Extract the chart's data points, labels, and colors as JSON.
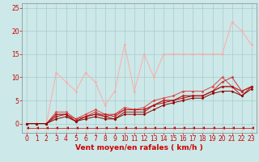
{
  "background_color": "#cce8e8",
  "grid_color": "#aacccc",
  "xlabel": "Vent moyen/en rafales ( km/h )",
  "xlabel_color": "#cc0000",
  "xlabel_fontsize": 6.5,
  "tick_color": "#cc0000",
  "tick_fontsize": 5.5,
  "xlim": [
    -0.5,
    23.5
  ],
  "ylim": [
    -2,
    26
  ],
  "yticks": [
    0,
    5,
    10,
    15,
    20,
    25
  ],
  "xticks": [
    0,
    1,
    2,
    3,
    4,
    5,
    6,
    7,
    8,
    9,
    10,
    11,
    12,
    13,
    14,
    15,
    16,
    17,
    18,
    19,
    20,
    21,
    22,
    23
  ],
  "series": [
    {
      "x": [
        0,
        1,
        2,
        3,
        4,
        5,
        6,
        7,
        8,
        9,
        10,
        11,
        12,
        13,
        14,
        15,
        16,
        17,
        18,
        19,
        20,
        21,
        22,
        23
      ],
      "y": [
        0,
        0,
        0,
        11,
        9,
        7,
        11,
        9,
        4,
        7,
        17,
        7,
        15,
        10,
        15,
        15,
        15,
        15,
        15,
        15,
        15,
        22,
        20,
        17
      ],
      "color": "#ffaaaa",
      "linewidth": 0.7,
      "marker": "D",
      "markersize": 1.5
    },
    {
      "x": [
        0,
        1,
        2,
        3,
        4,
        5,
        6,
        7,
        8,
        9,
        10,
        11,
        12,
        13,
        14,
        15,
        16,
        17,
        18,
        19,
        20,
        21,
        22,
        23
      ],
      "y": [
        0,
        0,
        0,
        2.5,
        2.5,
        1,
        2,
        3,
        2,
        2,
        3.5,
        3,
        3.5,
        5,
        5.5,
        6,
        7,
        7,
        7,
        8,
        10,
        8,
        7,
        8
      ],
      "color": "#dd4444",
      "linewidth": 0.7,
      "marker": "D",
      "markersize": 1.5
    },
    {
      "x": [
        0,
        1,
        2,
        3,
        4,
        5,
        6,
        7,
        8,
        9,
        10,
        11,
        12,
        13,
        14,
        15,
        16,
        17,
        18,
        19,
        20,
        21,
        22,
        23
      ],
      "y": [
        0,
        0,
        0,
        2,
        2,
        1,
        1.5,
        2.5,
        1.5,
        2,
        3,
        3,
        3,
        4,
        5,
        5,
        6,
        6,
        6,
        7,
        9,
        10,
        7,
        8
      ],
      "color": "#cc3333",
      "linewidth": 0.7,
      "marker": "D",
      "markersize": 1.5
    },
    {
      "x": [
        0,
        1,
        2,
        3,
        4,
        5,
        6,
        7,
        8,
        9,
        10,
        11,
        12,
        13,
        14,
        15,
        16,
        17,
        18,
        19,
        20,
        21,
        22,
        23
      ],
      "y": [
        0,
        0,
        0,
        2,
        2,
        0.5,
        1.5,
        2,
        2,
        1.5,
        3,
        3,
        3,
        4,
        5,
        5,
        6,
        6,
        6,
        7,
        8,
        8,
        7,
        8
      ],
      "color": "#bb2222",
      "linewidth": 0.7,
      "marker": "D",
      "markersize": 1.5
    },
    {
      "x": [
        0,
        1,
        2,
        3,
        4,
        5,
        6,
        7,
        8,
        9,
        10,
        11,
        12,
        13,
        14,
        15,
        16,
        17,
        18,
        19,
        20,
        21,
        22,
        23
      ],
      "y": [
        0,
        0,
        0,
        1.5,
        2,
        0.5,
        1.5,
        2,
        1.5,
        1,
        2.5,
        2.5,
        2.5,
        4,
        4.5,
        5,
        5.5,
        6,
        6,
        7,
        8,
        8,
        6,
        8
      ],
      "color": "#aa1111",
      "linewidth": 0.7,
      "marker": "D",
      "markersize": 1.5
    },
    {
      "x": [
        0,
        1,
        2,
        3,
        4,
        5,
        6,
        7,
        8,
        9,
        10,
        11,
        12,
        13,
        14,
        15,
        16,
        17,
        18,
        19,
        20,
        21,
        22,
        23
      ],
      "y": [
        0,
        0,
        0,
        1,
        1.5,
        0.5,
        1,
        1.5,
        1,
        1,
        2,
        2,
        2,
        3,
        4,
        4.5,
        5,
        5.5,
        5.5,
        6.5,
        7,
        7,
        6,
        7.5
      ],
      "color": "#880000",
      "linewidth": 0.7,
      "marker": "D",
      "markersize": 1.5
    }
  ],
  "arrow_series": {
    "x": [
      0,
      1,
      2,
      3,
      4,
      5,
      6,
      7,
      8,
      9,
      10,
      11,
      12,
      13,
      14,
      15,
      16,
      17,
      18,
      19,
      20,
      21,
      22,
      23
    ],
    "y": [
      -1,
      -1,
      -1,
      -1,
      -1,
      -1,
      -1,
      -1,
      -1,
      -1,
      -1,
      -1,
      -1,
      -1,
      -1,
      -1,
      -1,
      -1,
      -1,
      -1,
      -1,
      -1,
      -1,
      -1
    ],
    "color": "#cc0000",
    "linewidth": 0.5,
    "marker": 4,
    "markersize": 3
  }
}
